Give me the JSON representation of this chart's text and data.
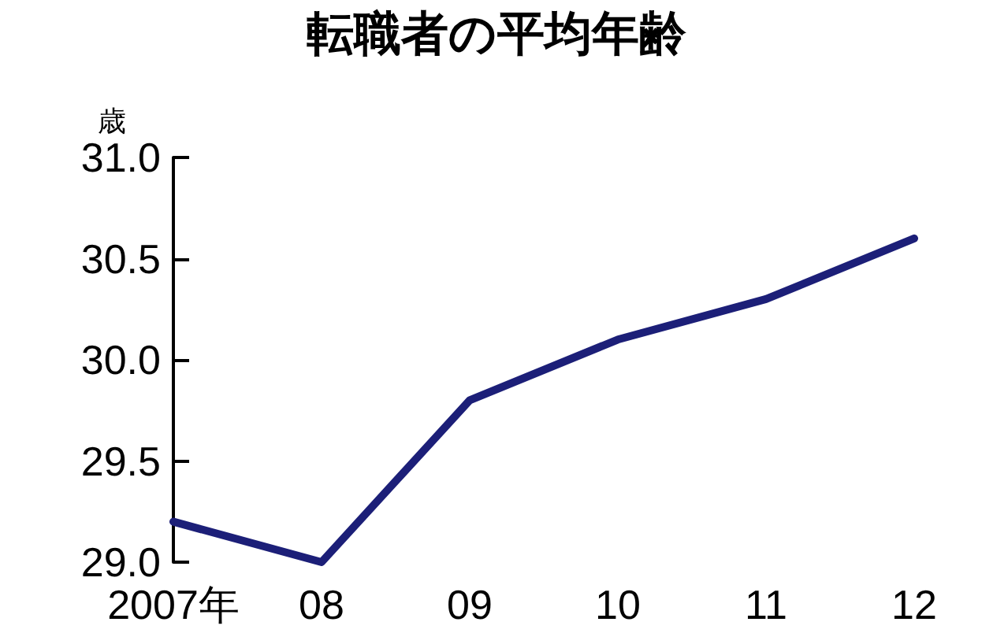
{
  "chart_data": {
    "type": "line",
    "title": "転職者の平均年齢",
    "ylabel": "歳",
    "categories": [
      "2007年",
      "08",
      "09",
      "10",
      "11",
      "12"
    ],
    "series": [
      {
        "color": "#1c1f78",
        "values": [
          29.2,
          29.0,
          29.8,
          30.1,
          30.3,
          30.6
        ]
      }
    ],
    "ylim": [
      29,
      31
    ],
    "yticks": [
      {
        "value": 29,
        "label": "29.0"
      },
      {
        "value": 29.5,
        "label": "29.5"
      },
      {
        "value": 30,
        "label": "30.0"
      },
      {
        "value": 30.5,
        "label": "30.5"
      },
      {
        "value": 31,
        "label": "31.0"
      }
    ],
    "grid": false,
    "marker": "none",
    "line_style": "solid"
  }
}
